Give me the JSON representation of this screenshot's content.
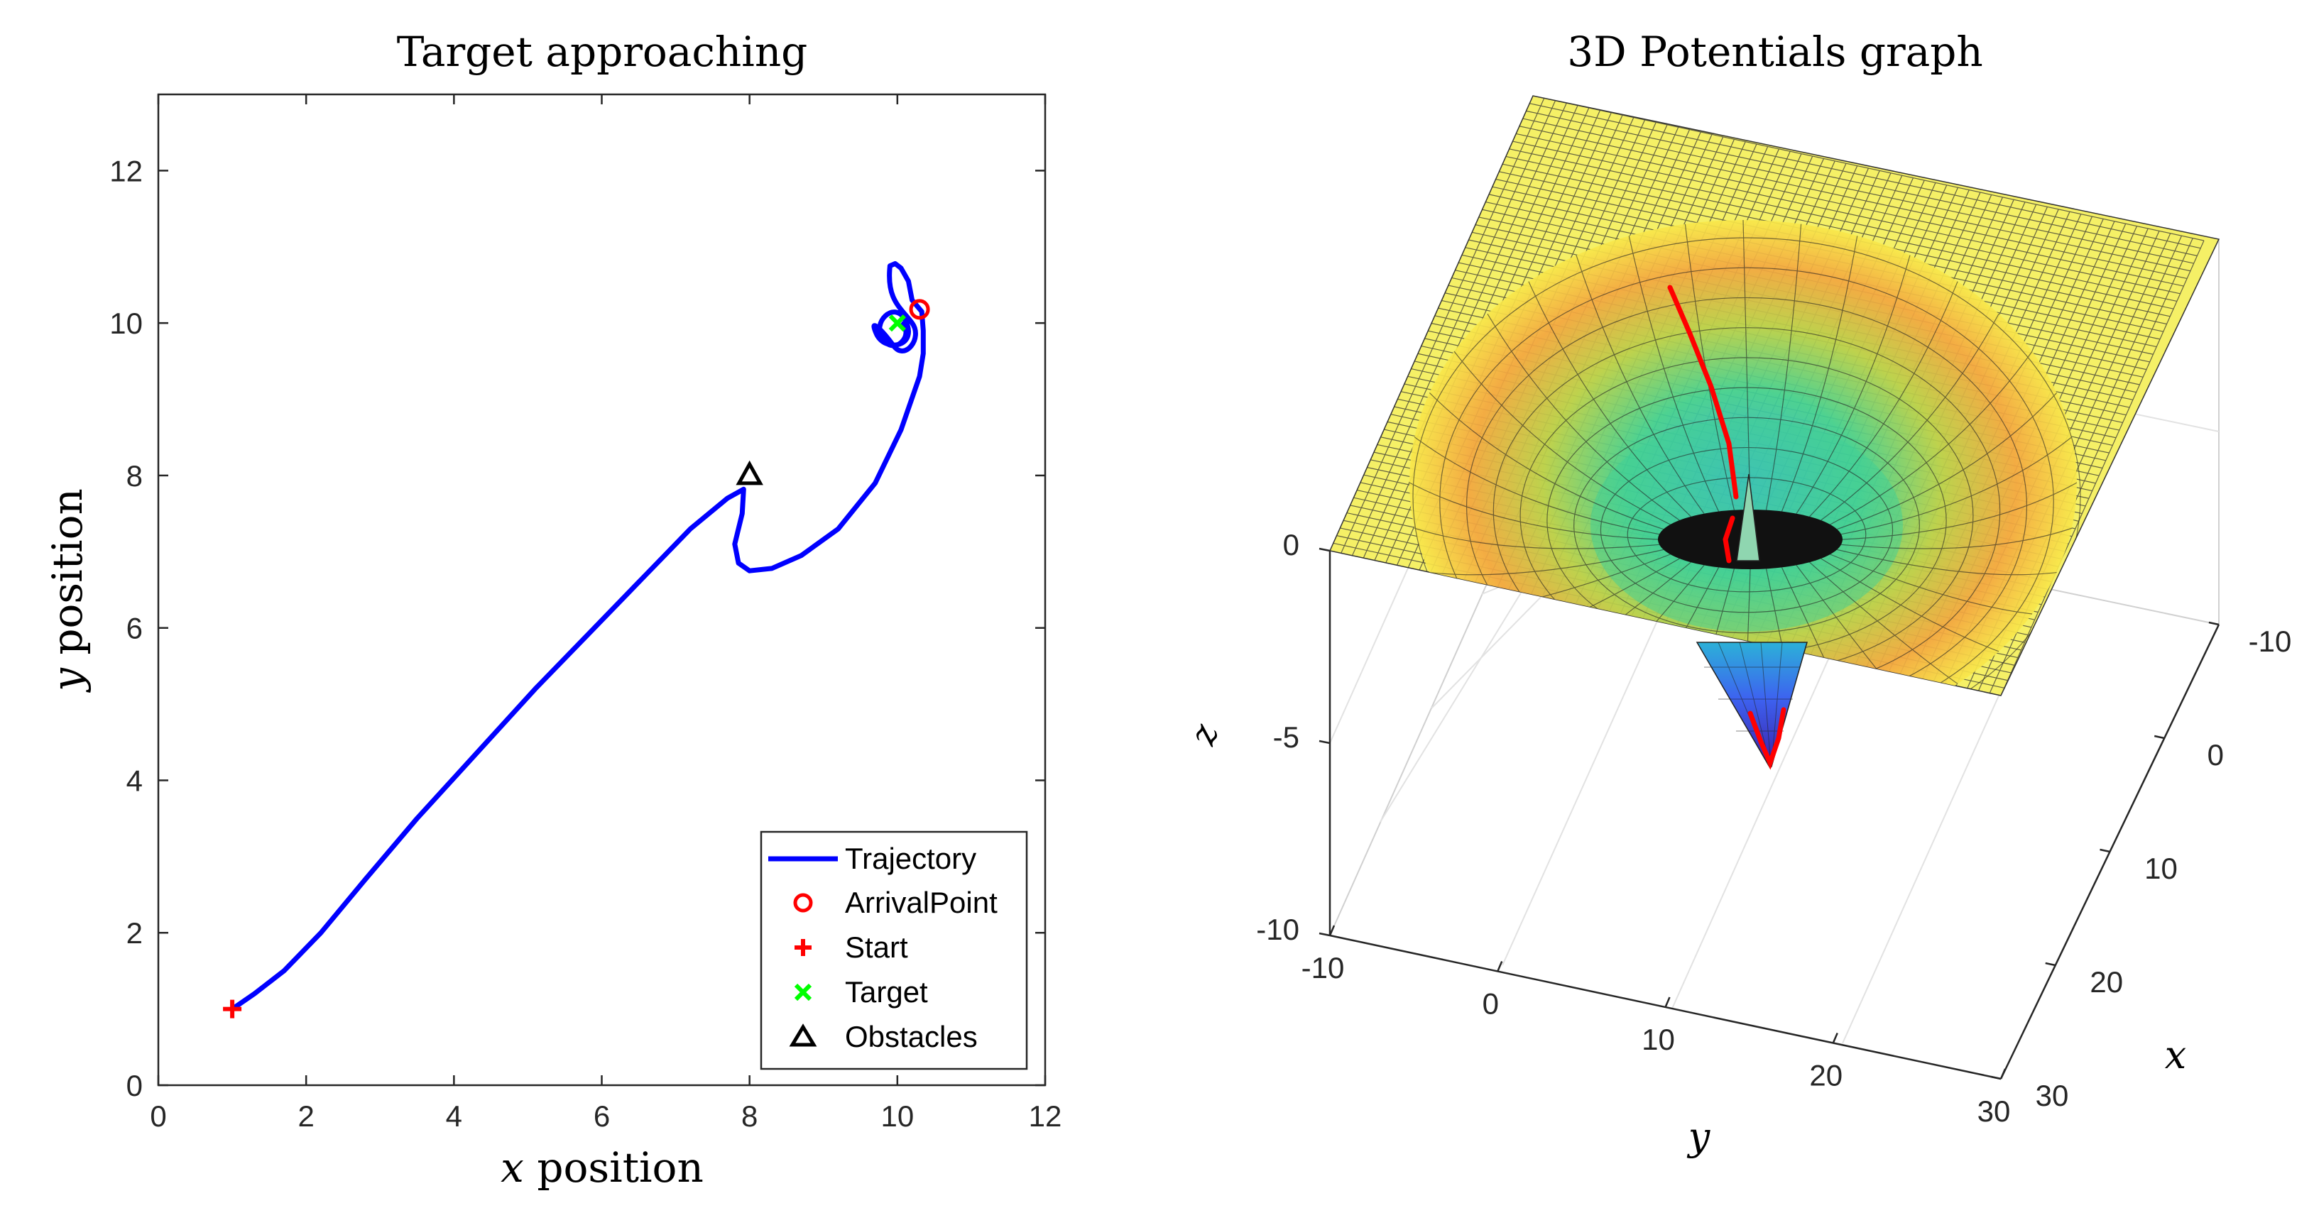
{
  "chart_data": [
    {
      "type": "line",
      "title": "Target approaching",
      "xlabel_var": "x",
      "xlabel_rest": " position",
      "ylabel_var": "y",
      "ylabel_rest": " position",
      "xlim": [
        0,
        12
      ],
      "ylim": [
        0,
        13
      ],
      "xticks": [
        0,
        2,
        4,
        6,
        8,
        10,
        12
      ],
      "yticks": [
        0,
        2,
        4,
        6,
        8,
        10,
        12
      ],
      "grid": false,
      "legend_position": "bottom-right",
      "series": [
        {
          "name": "Trajectory",
          "color": "#0000ff",
          "x": [
            1.0,
            1.3,
            1.7,
            2.2,
            2.8,
            3.5,
            4.3,
            5.1,
            5.9,
            6.6,
            7.2,
            7.7,
            7.92,
            7.9,
            7.8,
            7.85,
            8.0,
            8.3,
            8.7,
            9.2,
            9.7,
            10.05,
            10.3,
            10.35,
            10.35,
            10.33,
            10.2,
            10.15,
            10.05,
            9.97,
            9.9
          ],
          "y": [
            1.0,
            1.2,
            1.5,
            2.0,
            2.7,
            3.5,
            4.35,
            5.2,
            6.0,
            6.7,
            7.3,
            7.7,
            7.82,
            7.5,
            7.1,
            6.85,
            6.75,
            6.78,
            6.95,
            7.3,
            7.9,
            8.6,
            9.3,
            9.6,
            9.9,
            10.15,
            10.3,
            10.55,
            10.72,
            10.78,
            10.75
          ]
        }
      ],
      "markers": [
        {
          "name": "ArrivalPoint",
          "symbol": "circle",
          "color": "#ff0000",
          "x": 10.3,
          "y": 10.18
        },
        {
          "name": "Start",
          "symbol": "plus",
          "color": "#ff0000",
          "x": 1.0,
          "y": 1.0
        },
        {
          "name": "Target",
          "symbol": "x",
          "color": "#00ff00",
          "x": 10.0,
          "y": 10.0
        },
        {
          "name": "Obstacles",
          "symbol": "triangle",
          "color": "#000000",
          "x": 8.0,
          "y": 8.0
        }
      ],
      "legend": [
        "Trajectory",
        "ArrivalPoint",
        "Start",
        "Target",
        "Obstacles"
      ]
    },
    {
      "type": "surface3d",
      "title": "3D Potentials graph",
      "xlabel": "x",
      "ylabel": "y",
      "zlabel": "z",
      "xlim": [
        -10,
        30
      ],
      "ylim": [
        -10,
        30
      ],
      "zlim": [
        -10,
        0
      ],
      "xticks": [
        -10,
        0,
        10,
        20,
        30
      ],
      "yticks": [
        -10,
        0,
        10,
        20,
        30
      ],
      "zticks": [
        -10,
        -5,
        0
      ],
      "surface_plane_z": 0,
      "well_center": [
        10,
        10
      ],
      "well_min_z": -5.8,
      "colormap": [
        "#3b1ea8",
        "#3d62f0",
        "#2cb1d8",
        "#3fcf95",
        "#b9cf4b",
        "#f3a640",
        "#f8e84a",
        "#f5f066"
      ],
      "path_color": "#ff0000"
    }
  ]
}
